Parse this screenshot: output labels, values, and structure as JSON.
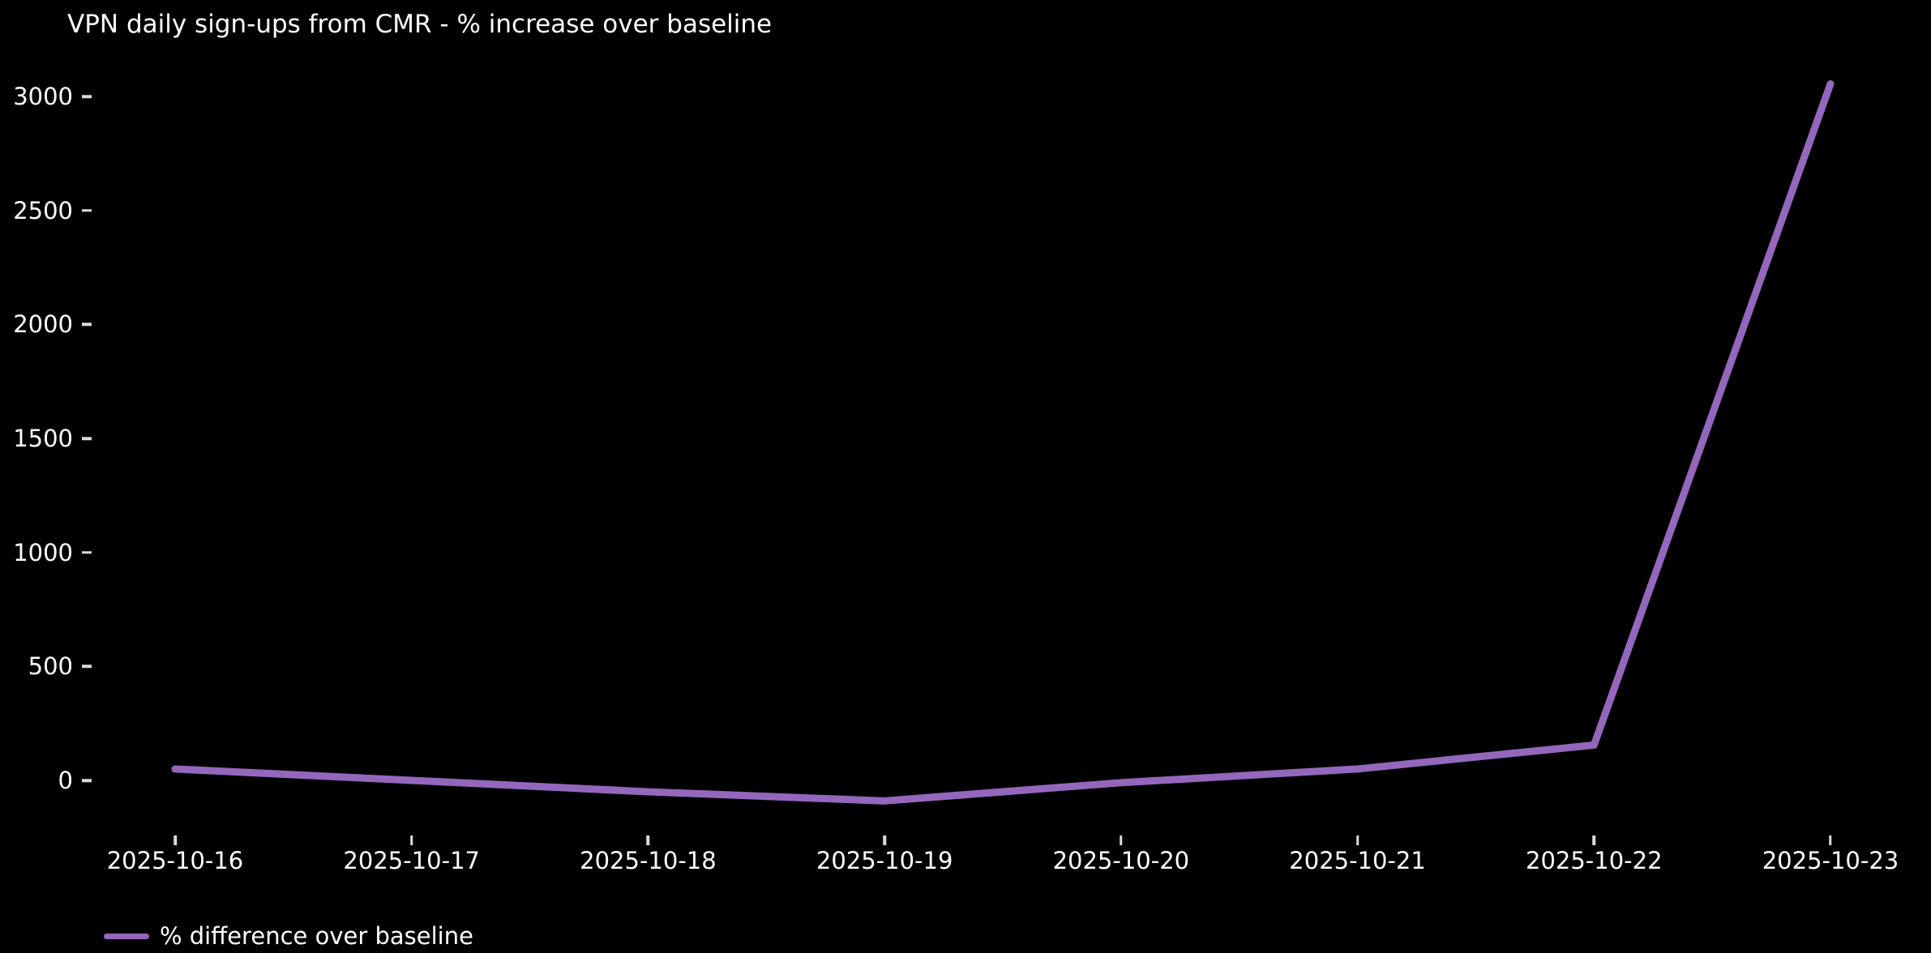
{
  "title": "VPN daily sign-ups from CMR - % increase over baseline",
  "legend": {
    "label": "% difference over baseline"
  },
  "colors": {
    "background": "#000000",
    "text": "#ffffff",
    "tick": "#dcdcdc",
    "line": "#9467bd"
  },
  "chart_data": {
    "type": "line",
    "title": "VPN daily sign-ups from CMR - % increase over baseline",
    "x": [
      "2025-10-16",
      "2025-10-17",
      "2025-10-18",
      "2025-10-19",
      "2025-10-20",
      "2025-10-21",
      "2025-10-22",
      "2025-10-23"
    ],
    "series": [
      {
        "name": "% difference over baseline",
        "color": "#9467bd",
        "values": [
          50,
          0,
          -50,
          -90,
          -10,
          50,
          155,
          3055
        ]
      }
    ],
    "xlabel": "",
    "ylabel": "",
    "yticks": [
      0,
      500,
      1000,
      1500,
      2000,
      2500,
      3000
    ],
    "ylim": [
      -250,
      3210
    ],
    "grid": false,
    "legend_position": "lower-left",
    "background": "black"
  }
}
